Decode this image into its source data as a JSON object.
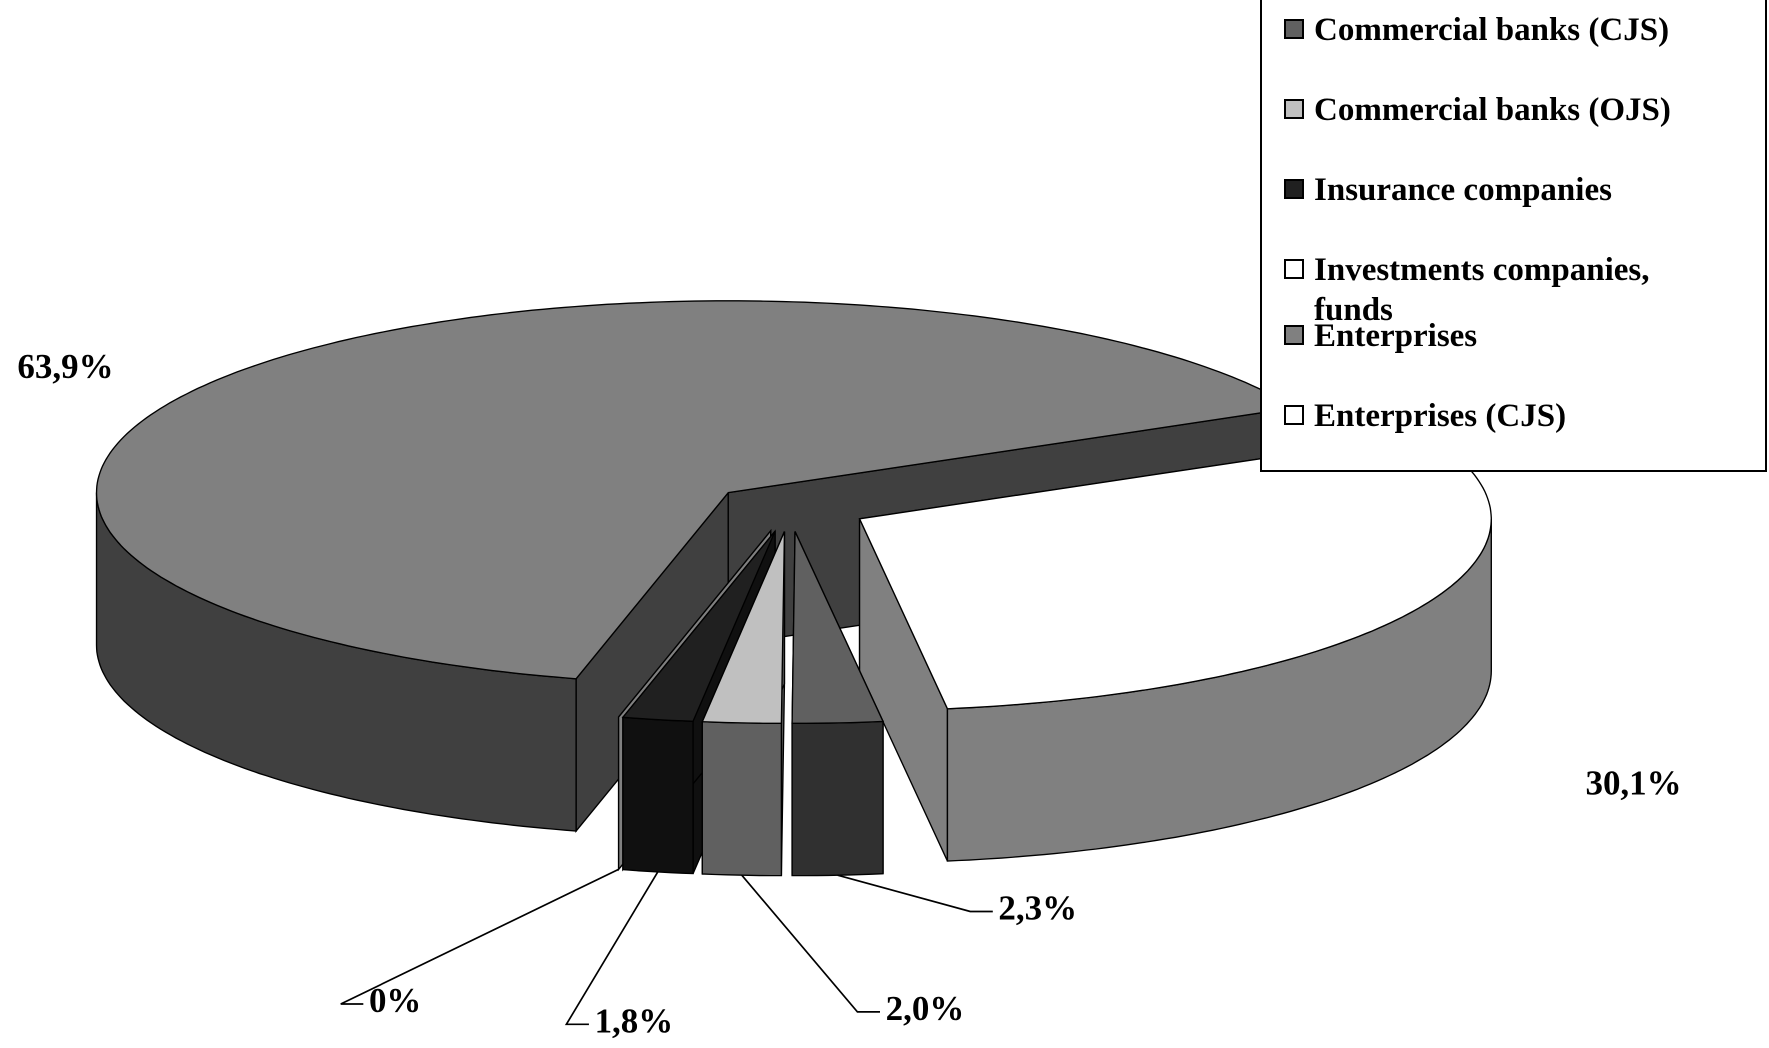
{
  "chart_data": {
    "type": "pie3d",
    "categories": [
      "Commercial banks (CJS)",
      "Commercial banks (OJS)",
      "Insurance companies",
      "Investments companies, funds",
      "Enterprises",
      "Enterprises (CJS)"
    ],
    "values": [
      2.3,
      2.0,
      1.8,
      0,
      63.9,
      30.1
    ],
    "value_labels": [
      "2,3%",
      "2,0%",
      "1,8%",
      "0%",
      "63,9%",
      "30,1%"
    ],
    "colors": [
      "#606060",
      "#c0c0c0",
      "#202020",
      "#ffffff",
      "#808080",
      "#ffffff"
    ],
    "legend": "top-right"
  }
}
